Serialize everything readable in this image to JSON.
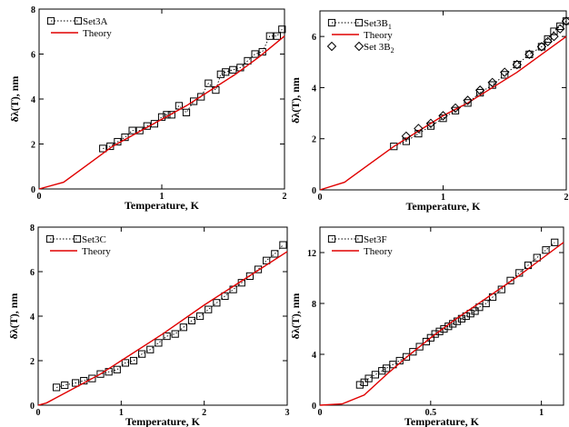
{
  "chart_data": [
    {
      "type": "scatter",
      "panel": "top-left",
      "xlabel": "Temperature, K",
      "ylabel": "δλ(T), nm",
      "xlim": [
        0,
        2
      ],
      "ylim": [
        0,
        8
      ],
      "xticks": [
        0,
        1,
        2
      ],
      "yticks": [
        0,
        2,
        4,
        6,
        8
      ],
      "legend_position": "top-left",
      "series": [
        {
          "name": "Set3A",
          "marker": "square",
          "line": "dotted",
          "x": [
            0.52,
            0.58,
            0.64,
            0.7,
            0.76,
            0.82,
            0.88,
            0.94,
            1.0,
            1.04,
            1.08,
            1.14,
            1.2,
            1.26,
            1.32,
            1.38,
            1.44,
            1.48,
            1.52,
            1.58,
            1.64,
            1.7,
            1.76,
            1.82,
            1.88,
            1.94,
            1.98
          ],
          "y": [
            1.8,
            1.9,
            2.1,
            2.3,
            2.6,
            2.6,
            2.8,
            2.9,
            3.2,
            3.3,
            3.3,
            3.7,
            3.4,
            3.9,
            4.1,
            4.7,
            4.4,
            5.1,
            5.2,
            5.3,
            5.4,
            5.7,
            6.0,
            6.1,
            6.8,
            6.8,
            7.1
          ]
        },
        {
          "name": "Theory",
          "style": "line",
          "x": [
            0,
            0.2,
            0.4,
            0.6,
            0.8,
            1.0,
            1.2,
            1.4,
            1.6,
            1.8,
            2.0
          ],
          "y": [
            0,
            0.3,
            1.1,
            1.9,
            2.5,
            3.1,
            3.7,
            4.4,
            5.1,
            5.9,
            6.8
          ]
        }
      ]
    },
    {
      "type": "scatter",
      "panel": "top-right",
      "xlabel": "Temperature, K",
      "ylabel": "δλ(T), nm",
      "xlim": [
        0,
        2
      ],
      "ylim": [
        0,
        7
      ],
      "xticks": [
        0,
        1,
        2
      ],
      "yticks": [
        0,
        2,
        4,
        6
      ],
      "legend_position": "top-left",
      "series": [
        {
          "name": "Set3B",
          "name_sub": "1",
          "marker": "square",
          "line": "dotted",
          "x": [
            0.6,
            0.7,
            0.8,
            0.9,
            1.0,
            1.1,
            1.2,
            1.3,
            1.4,
            1.5,
            1.6,
            1.7,
            1.8,
            1.85,
            1.9,
            1.95,
            2.0
          ],
          "y": [
            1.7,
            1.9,
            2.2,
            2.5,
            2.8,
            3.1,
            3.4,
            3.8,
            4.1,
            4.5,
            4.9,
            5.3,
            5.6,
            5.9,
            6.2,
            6.4,
            6.6
          ]
        },
        {
          "name": "Theory",
          "style": "line",
          "x": [
            0,
            0.2,
            0.4,
            0.6,
            0.8,
            1.0,
            1.2,
            1.4,
            1.6,
            1.8,
            2.0
          ],
          "y": [
            0,
            0.3,
            1.0,
            1.7,
            2.3,
            2.9,
            3.4,
            4.0,
            4.6,
            5.3,
            6.0
          ]
        },
        {
          "name": "Set 3B",
          "name_sub": "2",
          "marker": "diamond",
          "line": "none",
          "x": [
            0.7,
            0.8,
            0.9,
            1.0,
            1.1,
            1.2,
            1.3,
            1.4,
            1.5,
            1.6,
            1.7,
            1.8,
            1.85,
            1.9,
            1.95,
            2.0
          ],
          "y": [
            2.1,
            2.4,
            2.6,
            2.9,
            3.2,
            3.5,
            3.9,
            4.2,
            4.6,
            4.9,
            5.3,
            5.6,
            5.8,
            6.0,
            6.3,
            6.6
          ]
        }
      ]
    },
    {
      "type": "scatter",
      "panel": "bottom-left",
      "xlabel": "Temperature, K",
      "ylabel": "δλ(T), nm",
      "xlim": [
        0,
        3
      ],
      "ylim": [
        0,
        8
      ],
      "xticks": [
        0,
        1,
        2,
        3
      ],
      "yticks": [
        0,
        2,
        4,
        6,
        8
      ],
      "legend_position": "top-left",
      "series": [
        {
          "name": "Set3C",
          "marker": "square",
          "line": "dotted",
          "x": [
            0.22,
            0.32,
            0.45,
            0.55,
            0.65,
            0.75,
            0.85,
            0.95,
            1.05,
            1.15,
            1.25,
            1.35,
            1.45,
            1.55,
            1.65,
            1.75,
            1.85,
            1.95,
            2.05,
            2.15,
            2.25,
            2.35,
            2.45,
            2.55,
            2.65,
            2.75,
            2.85,
            2.95
          ],
          "y": [
            0.8,
            0.9,
            1.0,
            1.1,
            1.2,
            1.4,
            1.5,
            1.6,
            1.9,
            2.0,
            2.3,
            2.5,
            2.8,
            3.1,
            3.2,
            3.5,
            3.8,
            4.0,
            4.3,
            4.6,
            4.9,
            5.2,
            5.5,
            5.8,
            6.1,
            6.5,
            6.8,
            7.2
          ]
        },
        {
          "name": "Theory",
          "style": "line",
          "x": [
            0,
            0.1,
            0.2,
            0.3,
            0.5,
            0.75,
            1.0,
            1.5,
            2.0,
            2.5,
            3.0
          ],
          "y": [
            0,
            0.1,
            0.3,
            0.5,
            0.9,
            1.4,
            2.0,
            3.2,
            4.5,
            5.7,
            6.9
          ]
        }
      ]
    },
    {
      "type": "scatter",
      "panel": "bottom-right",
      "xlabel": "Temperature, K",
      "ylabel": "δλ(T), nm",
      "xlim": [
        0,
        1.1
      ],
      "ylim": [
        0,
        14
      ],
      "xticks": [
        0,
        0.5,
        1
      ],
      "yticks": [
        0,
        4,
        8,
        12
      ],
      "legend_position": "top-left",
      "series": [
        {
          "name": "Set3F",
          "marker": "square",
          "line": "dotted",
          "x": [
            0.18,
            0.2,
            0.22,
            0.25,
            0.28,
            0.3,
            0.33,
            0.36,
            0.39,
            0.42,
            0.45,
            0.48,
            0.5,
            0.52,
            0.54,
            0.56,
            0.58,
            0.6,
            0.62,
            0.64,
            0.66,
            0.68,
            0.7,
            0.72,
            0.75,
            0.78,
            0.82,
            0.86,
            0.9,
            0.94,
            0.98,
            1.02,
            1.06
          ],
          "y": [
            1.6,
            1.8,
            2.1,
            2.4,
            2.7,
            2.9,
            3.2,
            3.5,
            3.8,
            4.2,
            4.6,
            5.0,
            5.3,
            5.6,
            5.8,
            6.0,
            6.2,
            6.4,
            6.6,
            6.8,
            7.0,
            7.2,
            7.4,
            7.7,
            8.0,
            8.5,
            9.1,
            9.8,
            10.4,
            11.0,
            11.6,
            12.2,
            12.8
          ]
        },
        {
          "name": "Theory",
          "style": "line",
          "x": [
            0,
            0.1,
            0.2,
            0.3,
            0.4,
            0.5,
            0.6,
            0.7,
            0.8,
            0.9,
            1.0,
            1.1
          ],
          "y": [
            0,
            0.1,
            0.8,
            2.4,
            3.9,
            5.3,
            6.6,
            7.8,
            9.0,
            10.2,
            11.5,
            12.8
          ]
        }
      ]
    }
  ]
}
